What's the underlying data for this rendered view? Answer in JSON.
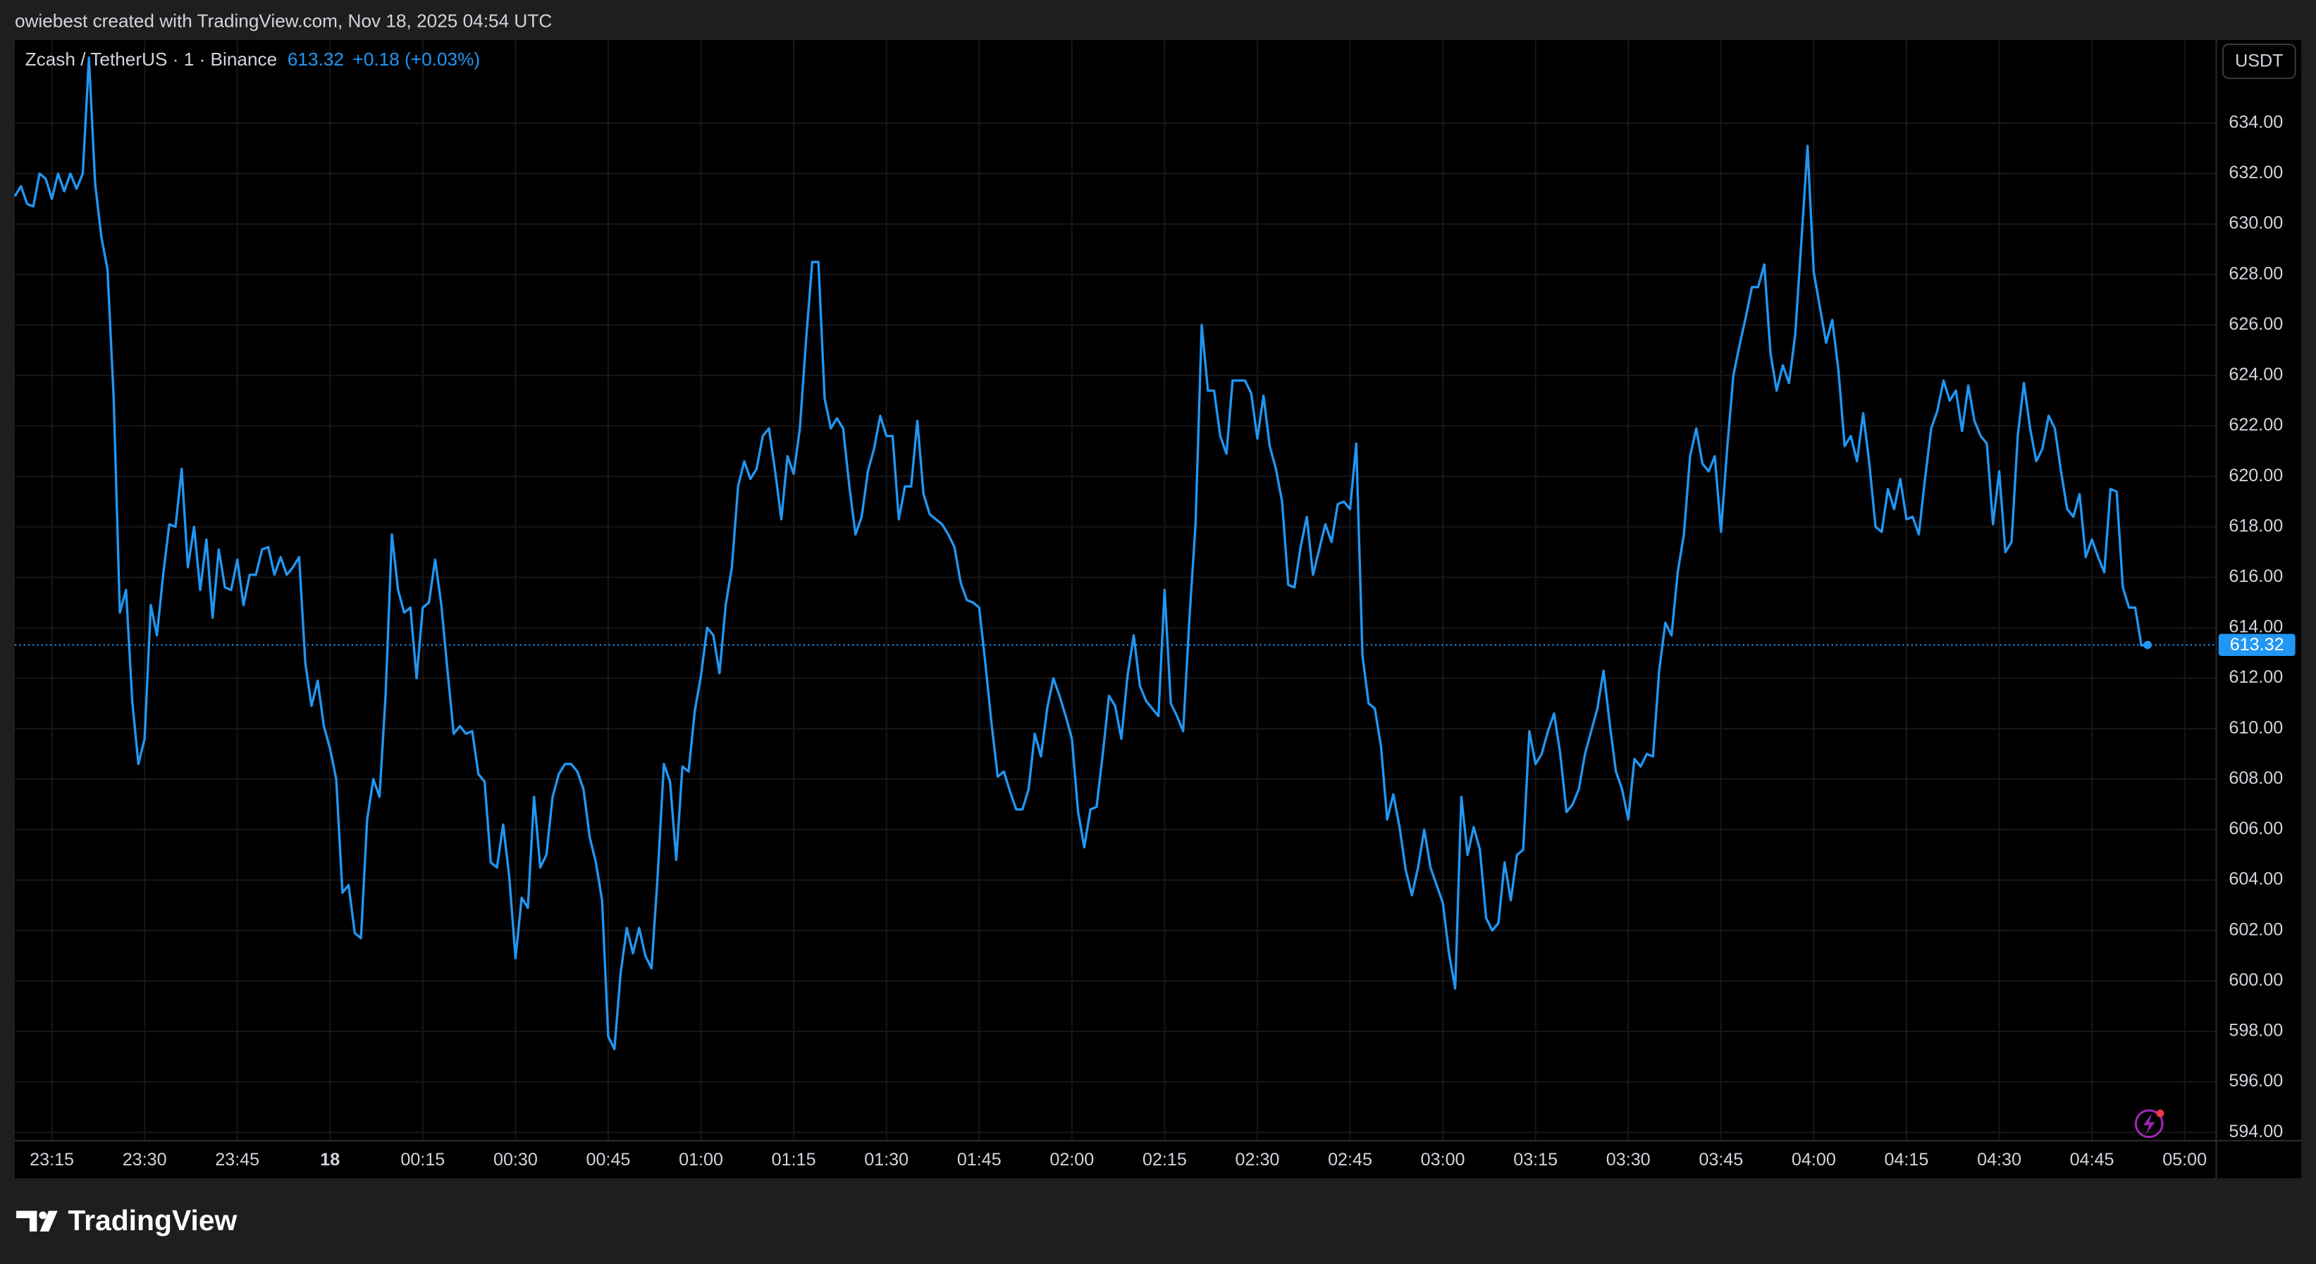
{
  "header": "owiebest created with TradingView.com, Nov 18, 2025 04:54 UTC",
  "footer": "TradingView",
  "chart_data": {
    "type": "line",
    "change": "+0.18 (+0.03%)",
    "currency": "USDT",
    "grid": true,
    "xlim": [
      "23:09",
      "05:05"
    ],
    "ylim": [
      593.7,
      637.3
    ],
    "xticks": [
      "23:15",
      "23:30",
      "23:45",
      {
        "value": "00:00",
        "label": "18"
      },
      "00:15",
      "00:30",
      "00:45",
      "01:00",
      "01:15",
      "01:30",
      "01:45",
      "02:00",
      "02:15",
      "02:30",
      "02:45",
      "03:00",
      "03:15",
      "03:30",
      "03:45",
      "04:00",
      "04:15",
      "04:30",
      "04:45",
      "05:00"
    ],
    "yticks": [
      {
        "value": 594,
        "label": "594.00"
      },
      {
        "value": 596,
        "label": "596.00"
      },
      {
        "value": 598,
        "label": "598.00"
      },
      {
        "value": 600,
        "label": "600.00"
      },
      {
        "value": 602,
        "label": "602.00"
      },
      {
        "value": 604,
        "label": "604.00"
      },
      {
        "value": 606,
        "label": "606.00"
      },
      {
        "value": 608,
        "label": "608.00"
      },
      {
        "value": 610,
        "label": "610.00"
      },
      {
        "value": 612,
        "label": "612.00"
      },
      {
        "value": 614,
        "label": "614.00"
      },
      {
        "value": 616,
        "label": "616.00"
      },
      {
        "value": 618,
        "label": "618.00"
      },
      {
        "value": 620,
        "label": "620.00"
      },
      {
        "value": 622,
        "label": "622.00"
      },
      {
        "value": 624,
        "label": "624.00"
      },
      {
        "value": 626,
        "label": "626.00"
      },
      {
        "value": 628,
        "label": "628.00"
      },
      {
        "value": 630,
        "label": "630.00"
      },
      {
        "value": 632,
        "label": "632.00"
      },
      {
        "value": 634,
        "label": "634.00"
      }
    ],
    "x": [
      "23:09",
      "23:10",
      "23:11",
      "23:12",
      "23:13",
      "23:14",
      "23:15",
      "23:16",
      "23:17",
      "23:18",
      "23:19",
      "23:20",
      "23:21",
      "23:22",
      "23:23",
      "23:24",
      "23:25",
      "23:26",
      "23:27",
      "23:28",
      "23:29",
      "23:30",
      "23:31",
      "23:32",
      "23:33",
      "23:34",
      "23:35",
      "23:36",
      "23:37",
      "23:38",
      "23:39",
      "23:40",
      "23:41",
      "23:42",
      "23:43",
      "23:44",
      "23:45",
      "23:46",
      "23:47",
      "23:48",
      "23:49",
      "23:50",
      "23:51",
      "23:52",
      "23:53",
      "23:54",
      "23:55",
      "23:56",
      "23:57",
      "23:58",
      "23:59",
      "00:00",
      "00:01",
      "00:02",
      "00:03",
      "00:04",
      "00:05",
      "00:06",
      "00:07",
      "00:08",
      "00:09",
      "00:10",
      "00:11",
      "00:12",
      "00:13",
      "00:14",
      "00:15",
      "00:16",
      "00:17",
      "00:18",
      "00:19",
      "00:20",
      "00:21",
      "00:22",
      "00:23",
      "00:24",
      "00:25",
      "00:26",
      "00:27",
      "00:28",
      "00:29",
      "00:30",
      "00:31",
      "00:32",
      "00:33",
      "00:34",
      "00:35",
      "00:36",
      "00:37",
      "00:38",
      "00:39",
      "00:40",
      "00:41",
      "00:42",
      "00:43",
      "00:44",
      "00:45",
      "00:46",
      "00:47",
      "00:48",
      "00:49",
      "00:50",
      "00:51",
      "00:52",
      "00:53",
      "00:54",
      "00:55",
      "00:56",
      "00:57",
      "00:58",
      "00:59",
      "01:00",
      "01:01",
      "01:02",
      "01:03",
      "01:04",
      "01:05",
      "01:06",
      "01:07",
      "01:08",
      "01:09",
      "01:10",
      "01:11",
      "01:12",
      "01:13",
      "01:14",
      "01:15",
      "01:16",
      "01:17",
      "01:18",
      "01:19",
      "01:20",
      "01:21",
      "01:22",
      "01:23",
      "01:24",
      "01:25",
      "01:26",
      "01:27",
      "01:28",
      "01:29",
      "01:30",
      "01:31",
      "01:32",
      "01:33",
      "01:34",
      "01:35",
      "01:36",
      "01:37",
      "01:38",
      "01:39",
      "01:40",
      "01:41",
      "01:42",
      "01:43",
      "01:44",
      "01:45",
      "01:46",
      "01:47",
      "01:48",
      "01:49",
      "01:50",
      "01:51",
      "01:52",
      "01:53",
      "01:54",
      "01:55",
      "01:56",
      "01:57",
      "01:58",
      "01:59",
      "02:00",
      "02:01",
      "02:02",
      "02:03",
      "02:04",
      "02:05",
      "02:06",
      "02:07",
      "02:08",
      "02:09",
      "02:10",
      "02:11",
      "02:12",
      "02:13",
      "02:14",
      "02:15",
      "02:16",
      "02:17",
      "02:18",
      "02:19",
      "02:20",
      "02:21",
      "02:22",
      "02:23",
      "02:24",
      "02:25",
      "02:26",
      "02:27",
      "02:28",
      "02:29",
      "02:30",
      "02:31",
      "02:32",
      "02:33",
      "02:34",
      "02:35",
      "02:36",
      "02:37",
      "02:38",
      "02:39",
      "02:40",
      "02:41",
      "02:42",
      "02:43",
      "02:44",
      "02:45",
      "02:46",
      "02:47",
      "02:48",
      "02:49",
      "02:50",
      "02:51",
      "02:52",
      "02:53",
      "02:54",
      "02:55",
      "02:56",
      "02:57",
      "02:58",
      "02:59",
      "03:00",
      "03:01",
      "03:02",
      "03:03",
      "03:04",
      "03:05",
      "03:06",
      "03:07",
      "03:08",
      "03:09",
      "03:10",
      "03:11",
      "03:12",
      "03:13",
      "03:14",
      "03:15",
      "03:16",
      "03:17",
      "03:18",
      "03:19",
      "03:20",
      "03:21",
      "03:22",
      "03:23",
      "03:24",
      "03:25",
      "03:26",
      "03:27",
      "03:28",
      "03:29",
      "03:30",
      "03:31",
      "03:32",
      "03:33",
      "03:34",
      "03:35",
      "03:36",
      "03:37",
      "03:38",
      "03:39",
      "03:40",
      "03:41",
      "03:42",
      "03:43",
      "03:44",
      "03:45",
      "03:46",
      "03:47",
      "03:48",
      "03:49",
      "03:50",
      "03:51",
      "03:52",
      "03:53",
      "03:54",
      "03:55",
      "03:56",
      "03:57",
      "03:58",
      "03:59",
      "04:00",
      "04:01",
      "04:02",
      "04:03",
      "04:04",
      "04:05",
      "04:06",
      "04:07",
      "04:08",
      "04:09",
      "04:10",
      "04:11",
      "04:12",
      "04:13",
      "04:14",
      "04:15",
      "04:16",
      "04:17",
      "04:18",
      "04:19",
      "04:20",
      "04:21",
      "04:22",
      "04:23",
      "04:24",
      "04:25",
      "04:26",
      "04:27",
      "04:28",
      "04:29",
      "04:30",
      "04:31",
      "04:32",
      "04:33",
      "04:34",
      "04:35",
      "04:36",
      "04:37",
      "04:38",
      "04:39",
      "04:40",
      "04:41",
      "04:42",
      "04:43",
      "04:44",
      "04:45",
      "04:46",
      "04:47",
      "04:48",
      "04:49",
      "04:50",
      "04:51",
      "04:52",
      "04:53",
      "04:54"
    ],
    "series": [
      {
        "name": "Zcash / TetherUS · 1 · Binance",
        "color": "#2196f3",
        "values": [
          631.1,
          631.5,
          630.8,
          630.7,
          632.0,
          631.8,
          631.0,
          632.0,
          631.3,
          632.0,
          631.4,
          632.0,
          636.6,
          631.6,
          629.5,
          628.2,
          623.1,
          614.6,
          615.5,
          611.1,
          608.6,
          609.6,
          614.9,
          613.7,
          616.1,
          618.1,
          618.0,
          620.3,
          616.4,
          618.0,
          615.5,
          617.5,
          614.4,
          617.1,
          615.6,
          615.5,
          616.7,
          614.9,
          616.1,
          616.1,
          617.1,
          617.2,
          616.1,
          616.8,
          616.1,
          616.4,
          616.8,
          612.6,
          610.9,
          611.9,
          610.1,
          609.2,
          608.0,
          603.5,
          603.8,
          601.9,
          601.7,
          606.4,
          608.0,
          607.3,
          611.4,
          617.7,
          615.5,
          614.6,
          614.8,
          612.0,
          614.8,
          615.0,
          616.7,
          614.9,
          612.3,
          609.8,
          610.1,
          609.8,
          609.9,
          608.2,
          607.9,
          604.7,
          604.5,
          606.2,
          604.1,
          600.9,
          603.3,
          602.9,
          607.3,
          604.5,
          605.0,
          607.3,
          608.2,
          608.6,
          608.6,
          608.3,
          607.6,
          605.7,
          604.7,
          603.2,
          597.8,
          597.3,
          600.3,
          602.1,
          601.1,
          602.1,
          601.0,
          600.5,
          604.2,
          608.6,
          607.9,
          604.8,
          608.5,
          608.3,
          610.7,
          612.1,
          614.0,
          613.7,
          612.2,
          614.9,
          616.4,
          619.6,
          620.6,
          619.9,
          620.3,
          621.6,
          621.9,
          620.2,
          618.3,
          620.8,
          620.1,
          621.9,
          625.4,
          628.5,
          628.5,
          623.1,
          621.9,
          622.3,
          621.9,
          619.6,
          617.7,
          618.4,
          620.2,
          621.1,
          622.4,
          621.6,
          621.6,
          618.3,
          619.6,
          619.6,
          622.2,
          619.3,
          618.5,
          618.3,
          618.1,
          617.7,
          617.2,
          615.8,
          615.1,
          615.0,
          614.8,
          612.6,
          610.2,
          608.1,
          608.3,
          607.5,
          606.8,
          606.8,
          607.6,
          609.8,
          608.9,
          610.8,
          612.0,
          611.3,
          610.5,
          609.6,
          606.7,
          605.3,
          606.8,
          606.9,
          609.0,
          611.3,
          610.9,
          609.6,
          612.1,
          613.7,
          611.7,
          611.1,
          610.8,
          610.5,
          615.5,
          611.0,
          610.5,
          609.9,
          614.3,
          618.1,
          626.0,
          623.4,
          623.4,
          621.6,
          620.9,
          623.8,
          623.8,
          623.8,
          623.3,
          621.5,
          623.2,
          621.2,
          620.3,
          619.0,
          615.7,
          615.6,
          617.2,
          618.4,
          616.1,
          617.1,
          618.1,
          617.4,
          618.9,
          619.0,
          618.7,
          621.3,
          612.9,
          611.0,
          610.8,
          609.3,
          606.4,
          607.4,
          606.1,
          604.4,
          603.4,
          604.5,
          606.0,
          604.5,
          603.8,
          603.1,
          601.1,
          599.7,
          607.3,
          605.0,
          606.1,
          605.2,
          602.5,
          602.0,
          602.3,
          604.7,
          603.2,
          605.0,
          605.2,
          609.9,
          608.6,
          609.0,
          609.9,
          610.6,
          609.0,
          606.7,
          607.0,
          607.6,
          609.0,
          609.9,
          610.8,
          612.3,
          610.2,
          608.3,
          607.6,
          606.4,
          608.8,
          608.5,
          609.0,
          608.9,
          612.3,
          614.2,
          613.7,
          616.2,
          617.7,
          620.8,
          621.9,
          620.5,
          620.2,
          620.8,
          617.8,
          621.1,
          624.0,
          625.2,
          626.3,
          627.5,
          627.5,
          628.4,
          624.9,
          623.4,
          624.4,
          623.7,
          625.6,
          629.3,
          633.1,
          628.1,
          626.7,
          625.3,
          626.2,
          624.2,
          621.2,
          621.6,
          620.6,
          622.5,
          620.5,
          618.0,
          617.8,
          619.5,
          618.7,
          619.9,
          618.3,
          618.4,
          617.7,
          619.9,
          621.9,
          622.6,
          623.8,
          623.0,
          623.4,
          621.8,
          623.6,
          622.2,
          621.6,
          621.3,
          618.1,
          620.2,
          617.0,
          617.4,
          621.6,
          623.7,
          621.9,
          620.6,
          621.1,
          622.4,
          621.9,
          620.2,
          618.7,
          618.4,
          619.3,
          616.8,
          617.5,
          616.8,
          616.2,
          619.5,
          619.4,
          615.6,
          614.8,
          614.8,
          613.3,
          613.32
        ]
      }
    ]
  }
}
